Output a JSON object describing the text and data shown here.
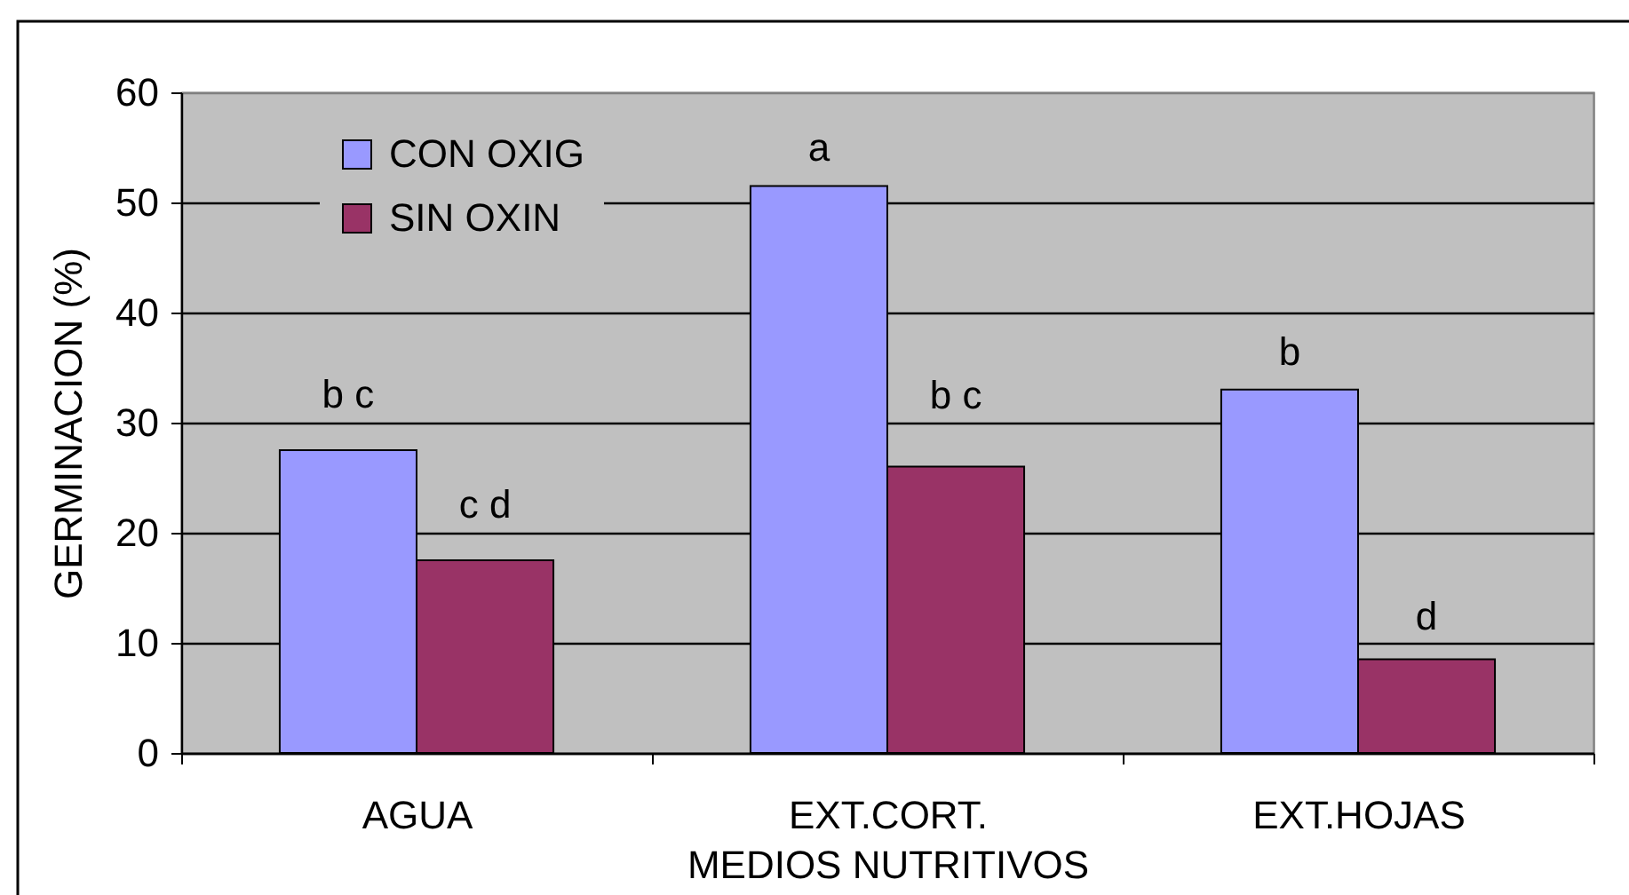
{
  "chart_data": {
    "type": "bar",
    "xlabel": "MEDIOS NUTRITIVOS",
    "ylabel": "GERMINACION (%)",
    "categories": [
      "AGUA",
      "EXT.CORT.",
      "EXT.HOJAS"
    ],
    "series": [
      {
        "name": "CON OXIG",
        "color": "#9999ff",
        "values": [
          27.5,
          51.5,
          33
        ],
        "value_labels": [
          "b c",
          "a",
          "b"
        ]
      },
      {
        "name": "SIN OXIN",
        "color": "#993366",
        "values": [
          17.5,
          26,
          8.5
        ],
        "value_labels": [
          "c d",
          "b c",
          "d"
        ]
      }
    ],
    "ylim": [
      0,
      60
    ],
    "yticks": [
      0,
      10,
      20,
      30,
      40,
      50,
      60
    ],
    "grid": "y",
    "legend": "top left"
  }
}
